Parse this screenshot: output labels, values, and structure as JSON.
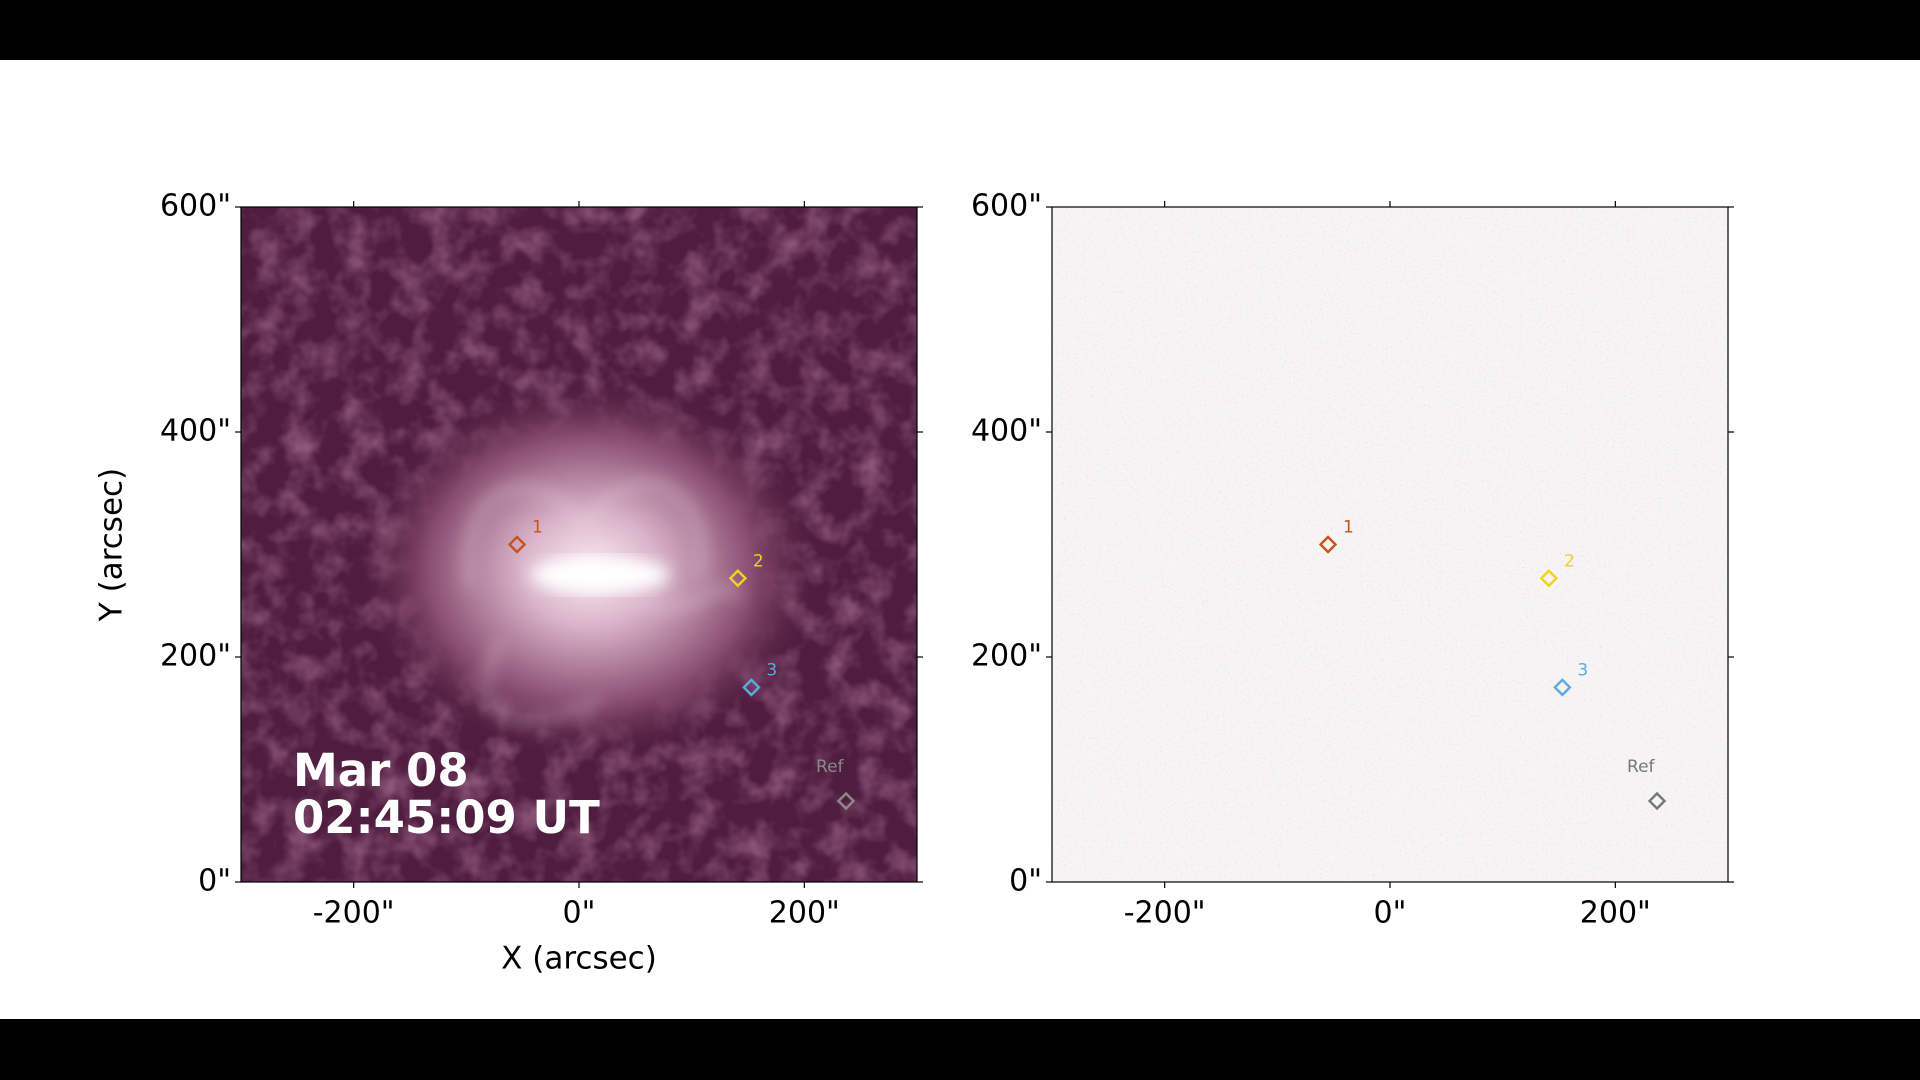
{
  "chart_data": [
    {
      "type": "image",
      "xlabel": "X (arcsec)",
      "ylabel": "Y (arcsec)",
      "annotation": [
        "Mar 08",
        "02:45:09 UT"
      ],
      "xlim": [
        -300,
        300
      ],
      "ylim": [
        0,
        600
      ],
      "xticks": [
        {
          "value": -200,
          "label": "-200\""
        },
        {
          "value": 0,
          "label": "0\""
        },
        {
          "value": 200,
          "label": "200\""
        }
      ],
      "yticks": [
        {
          "value": 0,
          "label": "0\""
        },
        {
          "value": 200,
          "label": "200\""
        },
        {
          "value": 400,
          "label": "400\""
        },
        {
          "value": 600,
          "label": "600\""
        }
      ],
      "series": [
        {
          "name": "1",
          "color": "#c8521c",
          "x": [
            -55
          ],
          "values": [
            300
          ]
        },
        {
          "name": "2",
          "color": "#f2d21e",
          "x": [
            141
          ],
          "values": [
            270
          ]
        },
        {
          "name": "3",
          "color": "#5fa8e0",
          "x": [
            153
          ],
          "values": [
            173
          ]
        },
        {
          "name": "Ref",
          "color": "#8a8a8a",
          "x": [
            237
          ],
          "values": [
            72
          ]
        }
      ]
    },
    {
      "type": "image",
      "xlim": [
        -300,
        300
      ],
      "ylim": [
        0,
        600
      ],
      "xticks": [
        {
          "value": -200,
          "label": "-200\""
        },
        {
          "value": 0,
          "label": "0\""
        },
        {
          "value": 200,
          "label": "200\""
        }
      ],
      "yticks": [
        {
          "value": 0,
          "label": "0\""
        },
        {
          "value": 200,
          "label": "200\""
        },
        {
          "value": 400,
          "label": "400\""
        },
        {
          "value": 600,
          "label": "600\""
        }
      ],
      "series": [
        {
          "name": "1",
          "color": "#c8521c",
          "x": [
            -55
          ],
          "values": [
            300
          ]
        },
        {
          "name": "2",
          "color": "#f2d21e",
          "x": [
            141
          ],
          "values": [
            270
          ]
        },
        {
          "name": "3",
          "color": "#5fa8e0",
          "x": [
            153
          ],
          "values": [
            173
          ]
        },
        {
          "name": "Ref",
          "color": "#777777",
          "x": [
            237
          ],
          "values": [
            72
          ]
        }
      ]
    }
  ]
}
